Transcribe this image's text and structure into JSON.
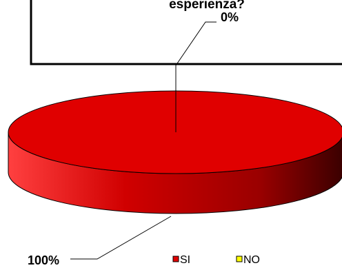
{
  "chart_data": {
    "type": "pie",
    "title": "esperienza?",
    "categories": [
      "SI",
      "NO"
    ],
    "values": [
      100,
      0
    ],
    "data_labels": [
      "100%",
      "0%"
    ],
    "legend": {
      "placement": "bottom-right",
      "entries": [
        "SI",
        "NO"
      ]
    },
    "colors": {
      "SI": "#e00000",
      "NO": "#ffff00"
    },
    "three_d": true
  }
}
